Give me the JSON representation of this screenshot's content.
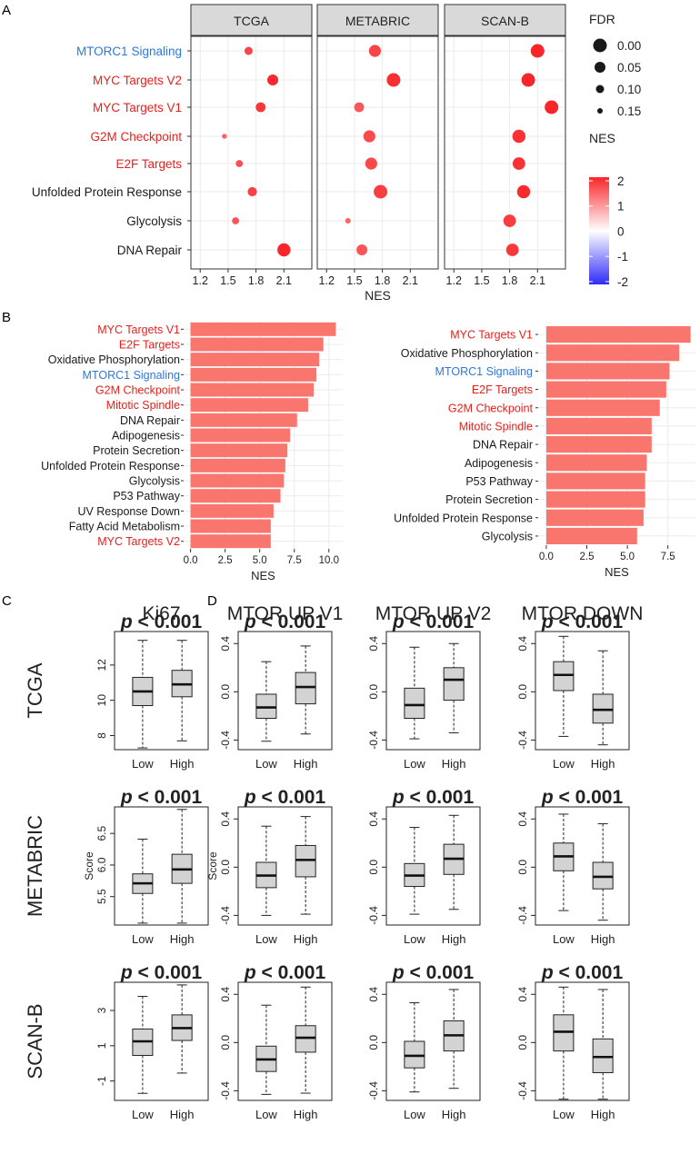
{
  "colors": {
    "red_label": "#e8201c",
    "blue_label": "#2c78dc",
    "bar_fill": "#f8766d",
    "strip_fill": "#d9d9d9",
    "box_fill": "#d3d3d3",
    "panel_bg": "#ffffff",
    "grid": "#ebebeb",
    "nes_high": "#f8262a",
    "nes_mid": "#ffffff",
    "nes_low": "#2f2bf7"
  },
  "panel_labels": {
    "a": "A",
    "b": "B",
    "c": "C",
    "d": "D"
  },
  "chart_data": [
    {
      "id": "A",
      "type": "scatter",
      "subtype": "dot-plot",
      "xlabel": "NES",
      "xlim": [
        1.1,
        2.4
      ],
      "xticks": [
        "1.2",
        "1.5",
        "1.8",
        "2.1"
      ],
      "facets": [
        "TCGA",
        "METABRIC",
        "SCAN-B"
      ],
      "categories": [
        {
          "label": "MTORC1 Signaling",
          "color": "blue"
        },
        {
          "label": "MYC Targets V2",
          "color": "red"
        },
        {
          "label": "MYC Targets V1",
          "color": "red"
        },
        {
          "label": "G2M Checkpoint",
          "color": "red"
        },
        {
          "label": "E2F Targets",
          "color": "red"
        },
        {
          "label": "Unfolded Protein Response",
          "color": "black"
        },
        {
          "label": "Glycolysis",
          "color": "black"
        },
        {
          "label": "DNA Repair",
          "color": "black"
        }
      ],
      "points": [
        [
          {
            "nes": 1.72,
            "fdr": 0.1
          },
          {
            "nes": 1.72,
            "fdr": 0.03
          },
          {
            "nes": 2.1,
            "fdr": 0.0
          }
        ],
        [
          {
            "nes": 1.98,
            "fdr": 0.05
          },
          {
            "nes": 1.92,
            "fdr": 0.0
          },
          {
            "nes": 2.0,
            "fdr": 0.0
          }
        ],
        [
          {
            "nes": 1.85,
            "fdr": 0.07
          },
          {
            "nes": 1.55,
            "fdr": 0.07
          },
          {
            "nes": 2.25,
            "fdr": 0.0
          }
        ],
        [
          {
            "nes": 1.46,
            "fdr": 0.16
          },
          {
            "nes": 1.66,
            "fdr": 0.03
          },
          {
            "nes": 1.9,
            "fdr": 0.01
          }
        ],
        [
          {
            "nes": 1.62,
            "fdr": 0.12
          },
          {
            "nes": 1.68,
            "fdr": 0.03
          },
          {
            "nes": 1.9,
            "fdr": 0.02
          }
        ],
        [
          {
            "nes": 1.76,
            "fdr": 0.08
          },
          {
            "nes": 1.78,
            "fdr": 0.0
          },
          {
            "nes": 1.95,
            "fdr": 0.01
          }
        ],
        [
          {
            "nes": 1.58,
            "fdr": 0.12
          },
          {
            "nes": 1.43,
            "fdr": 0.15
          },
          {
            "nes": 1.8,
            "fdr": 0.02
          }
        ],
        [
          {
            "nes": 2.1,
            "fdr": 0.01
          },
          {
            "nes": 1.58,
            "fdr": 0.05
          },
          {
            "nes": 1.83,
            "fdr": 0.02
          }
        ]
      ],
      "legend_size": {
        "title": "FDR",
        "entries": [
          "0.00",
          "0.05",
          "0.10",
          "0.15"
        ]
      },
      "legend_color": {
        "title": "NES",
        "ticks": [
          "2",
          "1",
          "0",
          "-1",
          "-2"
        ],
        "range": [
          -2,
          2
        ]
      }
    },
    {
      "id": "B-left",
      "type": "bar",
      "orientation": "horizontal",
      "xlabel": "NES",
      "xlim": [
        -0.5,
        11
      ],
      "xticks": [
        "0.0",
        "2.5",
        "5.0",
        "7.5",
        "10.0"
      ],
      "categories": [
        {
          "label": "MYC Targets V1",
          "color": "red"
        },
        {
          "label": "E2F Targets",
          "color": "red"
        },
        {
          "label": "Oxidative Phosphorylation",
          "color": "black"
        },
        {
          "label": "MTORC1 Signaling",
          "color": "blue"
        },
        {
          "label": "G2M Checkpoint",
          "color": "red"
        },
        {
          "label": "Mitotic Spindle",
          "color": "red"
        },
        {
          "label": "DNA Repair",
          "color": "black"
        },
        {
          "label": "Adipogenesis",
          "color": "black"
        },
        {
          "label": "Protein Secretion",
          "color": "black"
        },
        {
          "label": "Unfolded Protein Response",
          "color": "black"
        },
        {
          "label": "Glycolysis",
          "color": "black"
        },
        {
          "label": "P53 Pathway",
          "color": "black"
        },
        {
          "label": "UV Response Down",
          "color": "black"
        },
        {
          "label": "Fatty Acid Metabolism",
          "color": "black"
        },
        {
          "label": "MYC Targets V2",
          "color": "red"
        }
      ],
      "values": [
        10.5,
        9.6,
        9.3,
        9.1,
        8.9,
        8.5,
        7.7,
        7.2,
        7.0,
        6.85,
        6.75,
        6.5,
        6.0,
        5.8,
        5.8
      ]
    },
    {
      "id": "B-right",
      "type": "bar",
      "orientation": "horizontal",
      "xlabel": "NES",
      "xlim": [
        -0.5,
        9.2
      ],
      "xticks": [
        "0.0",
        "2.5",
        "5.0",
        "7.5"
      ],
      "categories": [
        {
          "label": "MYC Targets V1",
          "color": "red"
        },
        {
          "label": "Oxidative Phosphorylation",
          "color": "black"
        },
        {
          "label": "MTORC1 Signaling",
          "color": "blue"
        },
        {
          "label": "E2F Targets",
          "color": "red"
        },
        {
          "label": "G2M Checkpoint",
          "color": "red"
        },
        {
          "label": "Mitotic Spindle",
          "color": "red"
        },
        {
          "label": "DNA Repair",
          "color": "black"
        },
        {
          "label": "Adipogenesis",
          "color": "black"
        },
        {
          "label": "P53 Pathway",
          "color": "black"
        },
        {
          "label": "Protein Secretion",
          "color": "black"
        },
        {
          "label": "Unfolded Protein Response",
          "color": "black"
        },
        {
          "label": "Glycolysis",
          "color": "black"
        }
      ],
      "values": [
        8.9,
        8.2,
        7.6,
        7.4,
        7.0,
        6.5,
        6.5,
        6.2,
        6.1,
        6.1,
        6.0,
        5.6
      ]
    },
    {
      "id": "C-D",
      "type": "boxplot",
      "columns": [
        "Ki67",
        "MTOR UP V1",
        "MTOR UP V2",
        "MTOR DOWN"
      ],
      "rows": [
        "TCGA",
        "METABRIC",
        "SCAN-B"
      ],
      "groups": [
        "Low",
        "High"
      ],
      "ylabel": "Score",
      "p_value": "< 0.001",
      "p_symbol": "p",
      "cells": [
        [
          {
            "ylim": [
              7.2,
              13.9
            ],
            "yticks": [
              8,
              10,
              12
            ],
            "boxes": [
              {
                "wlo": 7.3,
                "q1": 9.7,
                "med": 10.5,
                "q3": 11.3,
                "whi": 13.4
              },
              {
                "wlo": 7.7,
                "q1": 10.2,
                "med": 10.9,
                "q3": 11.7,
                "whi": 13.4
              }
            ]
          },
          {
            "ylim": [
              -0.48,
              0.5
            ],
            "yticks": [
              -0.4,
              0.0,
              0.4
            ],
            "boxes": [
              {
                "wlo": -0.41,
                "q1": -0.22,
                "med": -0.13,
                "q3": -0.02,
                "whi": 0.25
              },
              {
                "wlo": -0.35,
                "q1": -0.1,
                "med": 0.04,
                "q3": 0.16,
                "whi": 0.38
              }
            ]
          },
          {
            "ylim": [
              -0.48,
              0.5
            ],
            "yticks": [
              -0.4,
              0.0,
              0.4
            ],
            "boxes": [
              {
                "wlo": -0.39,
                "q1": -0.22,
                "med": -0.11,
                "q3": 0.03,
                "whi": 0.37
              },
              {
                "wlo": -0.34,
                "q1": -0.07,
                "med": 0.1,
                "q3": 0.2,
                "whi": 0.4
              }
            ]
          },
          {
            "ylim": [
              -0.48,
              0.5
            ],
            "yticks": [
              -0.4,
              0.0,
              0.4
            ],
            "boxes": [
              {
                "wlo": -0.37,
                "q1": 0.01,
                "med": 0.14,
                "q3": 0.25,
                "whi": 0.46
              },
              {
                "wlo": -0.44,
                "q1": -0.26,
                "med": -0.15,
                "q3": -0.02,
                "whi": 0.34
              }
            ]
          }
        ],
        [
          {
            "ylim": [
              5.05,
              6.92
            ],
            "yticks": [
              5.5,
              6.0,
              6.5
            ],
            "boxes": [
              {
                "wlo": 5.08,
                "q1": 5.55,
                "med": 5.71,
                "q3": 5.86,
                "whi": 6.41
              },
              {
                "wlo": 5.08,
                "q1": 5.71,
                "med": 5.93,
                "q3": 6.17,
                "whi": 6.88
              }
            ]
          },
          {
            "ylim": [
              -0.48,
              0.5
            ],
            "yticks": [
              -0.4,
              0.0,
              0.4
            ],
            "boxes": [
              {
                "wlo": -0.4,
                "q1": -0.17,
                "med": -0.07,
                "q3": 0.04,
                "whi": 0.34
              },
              {
                "wlo": -0.39,
                "q1": -0.08,
                "med": 0.06,
                "q3": 0.18,
                "whi": 0.42
              }
            ]
          },
          {
            "ylim": [
              -0.48,
              0.5
            ],
            "yticks": [
              -0.4,
              0.0,
              0.4
            ],
            "boxes": [
              {
                "wlo": -0.39,
                "q1": -0.16,
                "med": -0.07,
                "q3": 0.03,
                "whi": 0.33
              },
              {
                "wlo": -0.35,
                "q1": -0.06,
                "med": 0.07,
                "q3": 0.19,
                "whi": 0.43
              }
            ]
          },
          {
            "ylim": [
              -0.48,
              0.5
            ],
            "yticks": [
              -0.4,
              0.0,
              0.4
            ],
            "boxes": [
              {
                "wlo": -0.36,
                "q1": -0.03,
                "med": 0.09,
                "q3": 0.2,
                "whi": 0.44
              },
              {
                "wlo": -0.44,
                "q1": -0.18,
                "med": -0.08,
                "q3": 0.04,
                "whi": 0.36
              }
            ]
          }
        ],
        [
          {
            "ylim": [
              -2.1,
              4.6
            ],
            "yticks": [
              -1,
              1,
              3
            ],
            "boxes": [
              {
                "wlo": -1.7,
                "q1": 0.45,
                "med": 1.25,
                "q3": 1.95,
                "whi": 3.8
              },
              {
                "wlo": -0.55,
                "q1": 1.3,
                "med": 2.0,
                "q3": 2.75,
                "whi": 4.45
              }
            ]
          },
          {
            "ylim": [
              -0.48,
              0.5
            ],
            "yticks": [
              -0.4,
              0.0,
              0.4
            ],
            "boxes": [
              {
                "wlo": -0.43,
                "q1": -0.24,
                "med": -0.14,
                "q3": -0.03,
                "whi": 0.31
              },
              {
                "wlo": -0.42,
                "q1": -0.08,
                "med": 0.04,
                "q3": 0.14,
                "whi": 0.46
              }
            ]
          },
          {
            "ylim": [
              -0.48,
              0.5
            ],
            "yticks": [
              -0.4,
              0.0,
              0.4
            ],
            "boxes": [
              {
                "wlo": -0.41,
                "q1": -0.21,
                "med": -0.11,
                "q3": 0.01,
                "whi": 0.33
              },
              {
                "wlo": -0.38,
                "q1": -0.07,
                "med": 0.06,
                "q3": 0.18,
                "whi": 0.44
              }
            ]
          },
          {
            "ylim": [
              -0.48,
              0.5
            ],
            "yticks": [
              -0.4,
              0.0,
              0.4
            ],
            "boxes": [
              {
                "wlo": -0.47,
                "q1": -0.07,
                "med": 0.09,
                "q3": 0.23,
                "whi": 0.46
              },
              {
                "wlo": -0.47,
                "q1": -0.25,
                "med": -0.12,
                "q3": 0.03,
                "whi": 0.44
              }
            ]
          }
        ]
      ]
    }
  ]
}
